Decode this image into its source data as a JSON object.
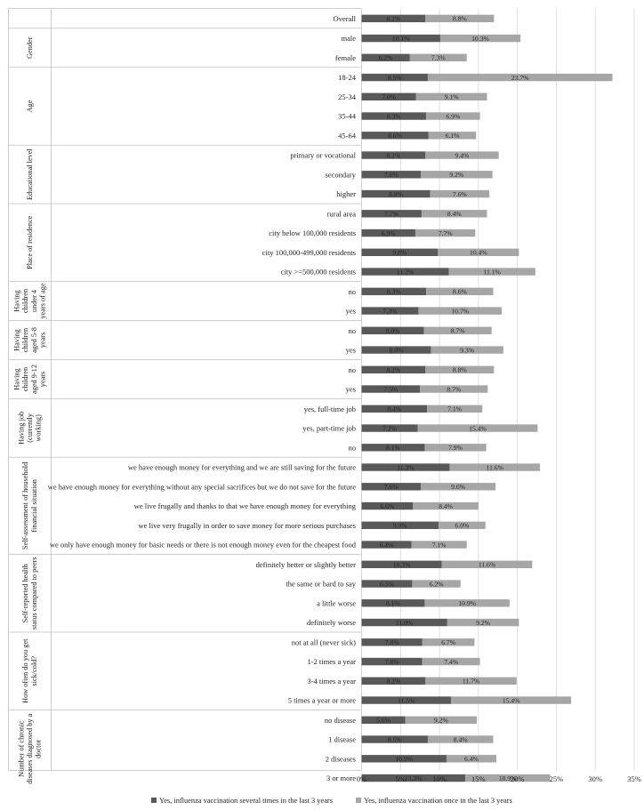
{
  "chart_data": {
    "type": "bar",
    "orientation": "horizontal",
    "stacked": true,
    "xlim": [
      0,
      35
    ],
    "xticks": [
      "0%",
      "5%",
      "10%",
      "15%",
      "20%",
      "25%",
      "30%",
      "35%"
    ],
    "colors": {
      "series1": "#595959",
      "series2": "#a6a6a6",
      "grid": "#d9d9d9",
      "frame": "#bfbfbf"
    },
    "series": [
      {
        "name": "Yes, influenza vaccination several times in the last 3 years"
      },
      {
        "name": "Yes, influenza vaccination once in the last 3 years"
      }
    ],
    "groups": [
      {
        "name": "",
        "name_lines": [],
        "rows": [
          {
            "label": "Overall",
            "v1": 8.2,
            "v2": 8.8,
            "l1": "8.2%",
            "l2": "8.8%"
          }
        ]
      },
      {
        "name": "Gender",
        "name_lines": [
          "Gender"
        ],
        "rows": [
          {
            "label": "male",
            "v1": 10.1,
            "v2": 10.3,
            "l1": "10.1%",
            "l2": "10.3%"
          },
          {
            "label": "female",
            "v1": 6.2,
            "v2": 7.3,
            "l1": "6.2%",
            "l2": "7.3%"
          }
        ]
      },
      {
        "name": "Age",
        "name_lines": [
          "Age"
        ],
        "rows": [
          {
            "label": "18-24",
            "v1": 8.5,
            "v2": 23.7,
            "l1": "8.5%",
            "l2": "23.7%"
          },
          {
            "label": "25-34",
            "v1": 7.0,
            "v2": 9.1,
            "l1": "7.0%",
            "l2": "9.1%"
          },
          {
            "label": "35-44",
            "v1": 8.3,
            "v2": 6.9,
            "l1": "8.3%",
            "l2": "6.9%"
          },
          {
            "label": "45-64",
            "v1": 8.6,
            "v2": 6.1,
            "l1": "8.6%",
            "l2": "6.1%"
          }
        ]
      },
      {
        "name": "Educational level",
        "name_lines": [
          "Educational level"
        ],
        "rows": [
          {
            "label": "primary or vocational",
            "v1": 8.2,
            "v2": 9.4,
            "l1": "8.2%",
            "l2": "9.4%"
          },
          {
            "label": "secondary",
            "v1": 7.6,
            "v2": 9.2,
            "l1": "7.6%",
            "l2": "9.2%"
          },
          {
            "label": "higher",
            "v1": 8.8,
            "v2": 7.6,
            "l1": "8.8%",
            "l2": "7.6%"
          }
        ]
      },
      {
        "name": "Place of residence",
        "name_lines": [
          "Place of residence"
        ],
        "rows": [
          {
            "label": "rural area",
            "v1": 7.7,
            "v2": 8.4,
            "l1": "7.7%",
            "l2": "8.4%"
          },
          {
            "label": "city below 100,000 residents",
            "v1": 6.9,
            "v2": 7.7,
            "l1": "6.9%",
            "l2": "7.7%"
          },
          {
            "label": "city 100,000-499,000 residents",
            "v1": 9.8,
            "v2": 10.4,
            "l1": "9.8%",
            "l2": "10.4%"
          },
          {
            "label": "city >=500,000 residents",
            "v1": 11.2,
            "v2": 11.1,
            "l1": "11.2%",
            "l2": "11.1%"
          }
        ]
      },
      {
        "name": "Having children under 4 years of age",
        "name_lines": [
          "Having",
          "children",
          "under 4",
          "years of age"
        ],
        "rows": [
          {
            "label": "no",
            "v1": 8.3,
            "v2": 8.6,
            "l1": "8.3%",
            "l2": "8.6%"
          },
          {
            "label": "yes",
            "v1": 7.3,
            "v2": 10.7,
            "l1": "7.3%",
            "l2": "10.7%"
          }
        ]
      },
      {
        "name": "Having children aged 5-8 years",
        "name_lines": [
          "Having",
          "children",
          "aged 5-8",
          "years"
        ],
        "rows": [
          {
            "label": "no",
            "v1": 8.0,
            "v2": 8.7,
            "l1": "8.0%",
            "l2": "8.7%"
          },
          {
            "label": "yes",
            "v1": 8.9,
            "v2": 9.3,
            "l1": "8.9%",
            "l2": "9.3%"
          }
        ]
      },
      {
        "name": "Having children aged 9-12 years",
        "name_lines": [
          "Having",
          "children",
          "aged 9-12",
          "years"
        ],
        "rows": [
          {
            "label": "no",
            "v1": 8.2,
            "v2": 8.8,
            "l1": "8.2%",
            "l2": "8.8%"
          },
          {
            "label": "yes",
            "v1": 7.5,
            "v2": 8.7,
            "l1": "7.5%",
            "l2": "8.7%"
          }
        ]
      },
      {
        "name": "Having job (currently working)",
        "name_lines": [
          "Having job",
          "(currently",
          "working)"
        ],
        "rows": [
          {
            "label": "yes, full-time job",
            "v1": 8.4,
            "v2": 7.1,
            "l1": "8.4%",
            "l2": "7.1%"
          },
          {
            "label": "yes, part-time job",
            "v1": 7.2,
            "v2": 15.4,
            "l1": "7.2%",
            "l2": "15.4%"
          },
          {
            "label": "no",
            "v1": 8.1,
            "v2": 7.9,
            "l1": "8.1%",
            "l2": "7.9%"
          }
        ]
      },
      {
        "name": "Self-assessment of household financial situation",
        "name_lines": [
          "Self-assessment of household",
          "financial situation"
        ],
        "rows": [
          {
            "label": "we have enough money for everything and we are still saving for the future",
            "v1": 11.3,
            "v2": 11.6,
            "l1": "11.3%",
            "l2": "11.6%"
          },
          {
            "label": "we have enough money for everything without any special sacrifices but we do not save for the future",
            "v1": 7.6,
            "v2": 9.6,
            "l1": "7.6%",
            "l2": "9.6%"
          },
          {
            "label": "we live frugally and thanks to that we have enough money for everything",
            "v1": 6.6,
            "v2": 8.4,
            "l1": "6.6%",
            "l2": "8.4%"
          },
          {
            "label": "we live very frugally in order to save money for more serious purchases",
            "v1": 9.9,
            "v2": 6.0,
            "l1": "9.9%",
            "l2": "6.0%"
          },
          {
            "label": "we only have enough money for basic needs or there is not enough money even for the cheapest food",
            "v1": 6.4,
            "v2": 7.1,
            "l1": "6.4%",
            "l2": "7.1%"
          }
        ]
      },
      {
        "name": "Self-reported health status compared to peers",
        "name_lines": [
          "Self-reported health",
          "status compared to peers"
        ],
        "rows": [
          {
            "label": "definitely better or slightly better",
            "v1": 10.3,
            "v2": 11.6,
            "l1": "10.3%",
            "l2": "11.6%"
          },
          {
            "label": "the same or hard to say",
            "v1": 6.5,
            "v2": 6.2,
            "l1": "6.5%",
            "l2": "6.2%"
          },
          {
            "label": "a little worse",
            "v1": 8.1,
            "v2": 10.9,
            "l1": "8.1%",
            "l2": "10.9%"
          },
          {
            "label": "definitely worse",
            "v1": 11.0,
            "v2": 9.2,
            "l1": "11.0%",
            "l2": "9.2%"
          }
        ]
      },
      {
        "name": "How often do you get sick/cold?",
        "name_lines": [
          "How often do you get",
          "sick/cold?"
        ],
        "rows": [
          {
            "label": "not at all (never sick)",
            "v1": 7.8,
            "v2": 6.7,
            "l1": "7.8%",
            "l2": "6.7%"
          },
          {
            "label": "1-2 times a year",
            "v1": 7.8,
            "v2": 7.4,
            "l1": "7.8%",
            "l2": "7.4%"
          },
          {
            "label": "3-4 times a year",
            "v1": 8.2,
            "v2": 11.7,
            "l1": "8.2%",
            "l2": "11.7%"
          },
          {
            "label": "5 times a year or more",
            "v1": 11.5,
            "v2": 15.4,
            "l1": "11.5%",
            "l2": "15.4%"
          }
        ]
      },
      {
        "name": "Number of chronic diseases diagnosed by a doctor",
        "name_lines": [
          "Number of chronic",
          "diseases diagnosed by a",
          "doctor"
        ],
        "rows": [
          {
            "label": "no disease",
            "v1": 5.6,
            "v2": 9.2,
            "l1": "5.6%",
            "l2": "9.2%"
          },
          {
            "label": "1 disease",
            "v1": 8.5,
            "v2": 8.4,
            "l1": "8.5%",
            "l2": "8.4%"
          },
          {
            "label": "2 diseases",
            "v1": 10.9,
            "v2": 6.4,
            "l1": "10.9%",
            "l2": "6.4%"
          },
          {
            "label": "3 or more",
            "v1": 13.3,
            "v2": 10.9,
            "l1": "13.3%",
            "l2": "10.9%"
          }
        ]
      }
    ]
  }
}
